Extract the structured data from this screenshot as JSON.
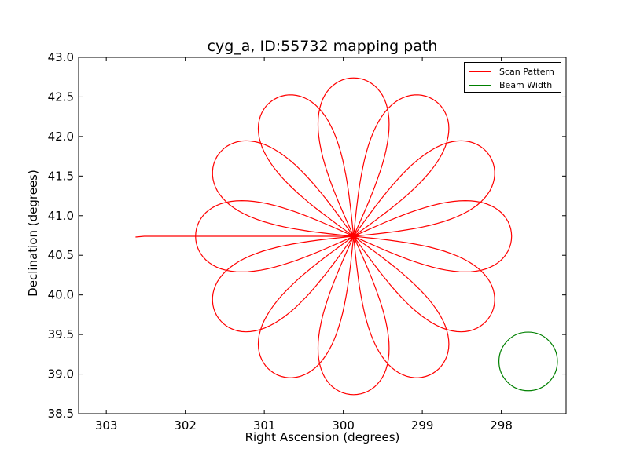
{
  "chart_data": {
    "type": "line",
    "title": "cyg_a, ID:55732 mapping path",
    "xlabel": "Right Ascension (degrees)",
    "ylabel": "Declination (degrees)",
    "xlim": [
      303.35,
      297.18
    ],
    "ylim": [
      38.5,
      43.0
    ],
    "xticks": [
      303,
      302,
      301,
      300,
      299,
      298
    ],
    "xtick_labels": [
      "303",
      "302",
      "301",
      "300",
      "299",
      "298"
    ],
    "yticks": [
      38.5,
      39.0,
      39.5,
      40.0,
      40.5,
      41.0,
      41.5,
      42.0,
      42.5,
      43.0
    ],
    "ytick_labels": [
      "38.5",
      "39.0",
      "39.5",
      "40.0",
      "40.5",
      "41.0",
      "41.5",
      "42.0",
      "42.5",
      "43.0"
    ],
    "grid": false,
    "legend_position": "top-right",
    "series": [
      {
        "name": "Scan Pattern",
        "color": "#ff0000",
        "pattern": "rose-curve",
        "center": [
          299.87,
          40.74
        ],
        "petals": 12,
        "petal_length_deg": 2.0,
        "petal_half_width_deg": 0.5,
        "lead_in": {
          "x": [
            302.63,
            302.52
          ],
          "y": [
            40.73,
            40.74
          ]
        }
      },
      {
        "name": "Beam Width",
        "color": "#008000",
        "pattern": "circle",
        "center": [
          297.66,
          39.16
        ],
        "radius_deg": 0.37
      }
    ]
  }
}
